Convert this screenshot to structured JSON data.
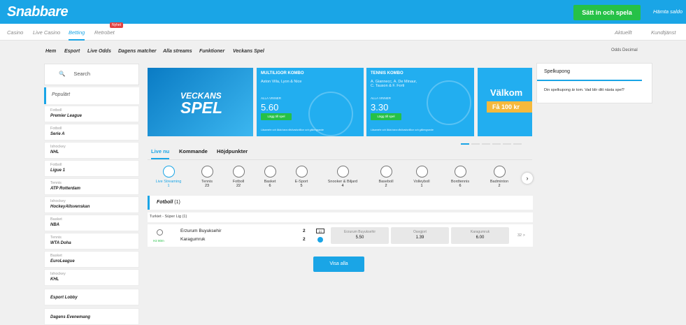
{
  "header": {
    "logo": "Snabbare",
    "cta": "Sätt in och spela",
    "download": "Hämta saldo"
  },
  "subnav": {
    "items": [
      "Casino",
      "Live Casino",
      "Betting",
      "Retrobet"
    ],
    "badge": "Nyhet",
    "right": [
      "Aktuellt",
      "Kundtjänst"
    ]
  },
  "menu": {
    "items": [
      "Hem",
      "Esport",
      "Live Odds",
      "Dagens matcher",
      "Alla streams",
      "Funktioner",
      "Veckans Spel"
    ],
    "odds": "Odds Decimal"
  },
  "sidebar": {
    "search": "Search",
    "popular": "Populärt",
    "items": [
      {
        "cat": "Fotboll",
        "name": "Premier League"
      },
      {
        "cat": "Fotboll",
        "name": "Serie A"
      },
      {
        "cat": "Ishockey",
        "name": "NHL"
      },
      {
        "cat": "Fotboll",
        "name": "Ligue 1"
      },
      {
        "cat": "Tennis",
        "name": "ATP Rotterdam"
      },
      {
        "cat": "Ishockey",
        "name": "HockeyAllsvenskan"
      },
      {
        "cat": "Basket",
        "name": "NBA"
      },
      {
        "cat": "Tennis",
        "name": "WTA Doha"
      },
      {
        "cat": "Basket",
        "name": "EuroLeague"
      },
      {
        "cat": "Ishockey",
        "name": "KHL"
      }
    ],
    "singles": [
      "Esport Lobby",
      "Dagens Evenemang"
    ]
  },
  "banners": {
    "b1": {
      "line1": "VECKANS",
      "line2": "SPEL"
    },
    "b2": {
      "title": "MULTILIGOR KOMBO",
      "matches": "Aston Villa, Lyon & Nice",
      "label": "ALLA VINNER",
      "odds": "5.60",
      "button": "Lägg till spel",
      "foot": "Läsamehr cch ålda bara nåvlivadsvillkor och gällengrande"
    },
    "b3": {
      "title": "TENNIS KOMBO",
      "matches": "A. Giannecc, A. De Minaur,\nC. Tauson & F. Forti",
      "label": "ALLA VINNER",
      "odds": "3.30",
      "button": "Lägg till spel",
      "foot": "Läsamehr cch ålda bara nåvlivadsvillkor och gällengrande"
    },
    "b4": {
      "title": "Välkom",
      "sub": "Få 100 kr"
    }
  },
  "live": {
    "tabs": [
      "Live nu",
      "Kommande",
      "Höjdpunkter"
    ],
    "sports": [
      {
        "name": "Live Streaming",
        "count": "1"
      },
      {
        "name": "Tennis",
        "count": "23"
      },
      {
        "name": "Fotboll",
        "count": "22"
      },
      {
        "name": "Basket",
        "count": "6"
      },
      {
        "name": "E-Sport",
        "count": "5"
      },
      {
        "name": "Snooker & Biljard",
        "count": "4"
      },
      {
        "name": "Baseboll",
        "count": "2"
      },
      {
        "name": "Volleyboll",
        "count": "1"
      },
      {
        "name": "Bordtennis",
        "count": "6"
      },
      {
        "name": "Badminton",
        "count": "2"
      }
    ]
  },
  "section": {
    "title": "Fotboll",
    "count": "(1)",
    "league": "Turkiet - Süper Lig (1)"
  },
  "match": {
    "time": "H2 80m",
    "home": "Erzurum Buyuksehir",
    "away": "Karagumruk",
    "score_home": "2",
    "score_away": "2",
    "stats": "||.|",
    "odds": [
      {
        "label": "Erzurum Buyuksehir",
        "value": "5.50"
      },
      {
        "label": "Oavgjort",
        "value": "1.39"
      },
      {
        "label": "Karagumruk",
        "value": "6.00"
      }
    ],
    "more": "32 >"
  },
  "show_all": "Visa alla",
  "coupon": {
    "title": "Spelkupong",
    "text": "Din spelkupong är tom. Vad blir ditt nästa spel?"
  }
}
